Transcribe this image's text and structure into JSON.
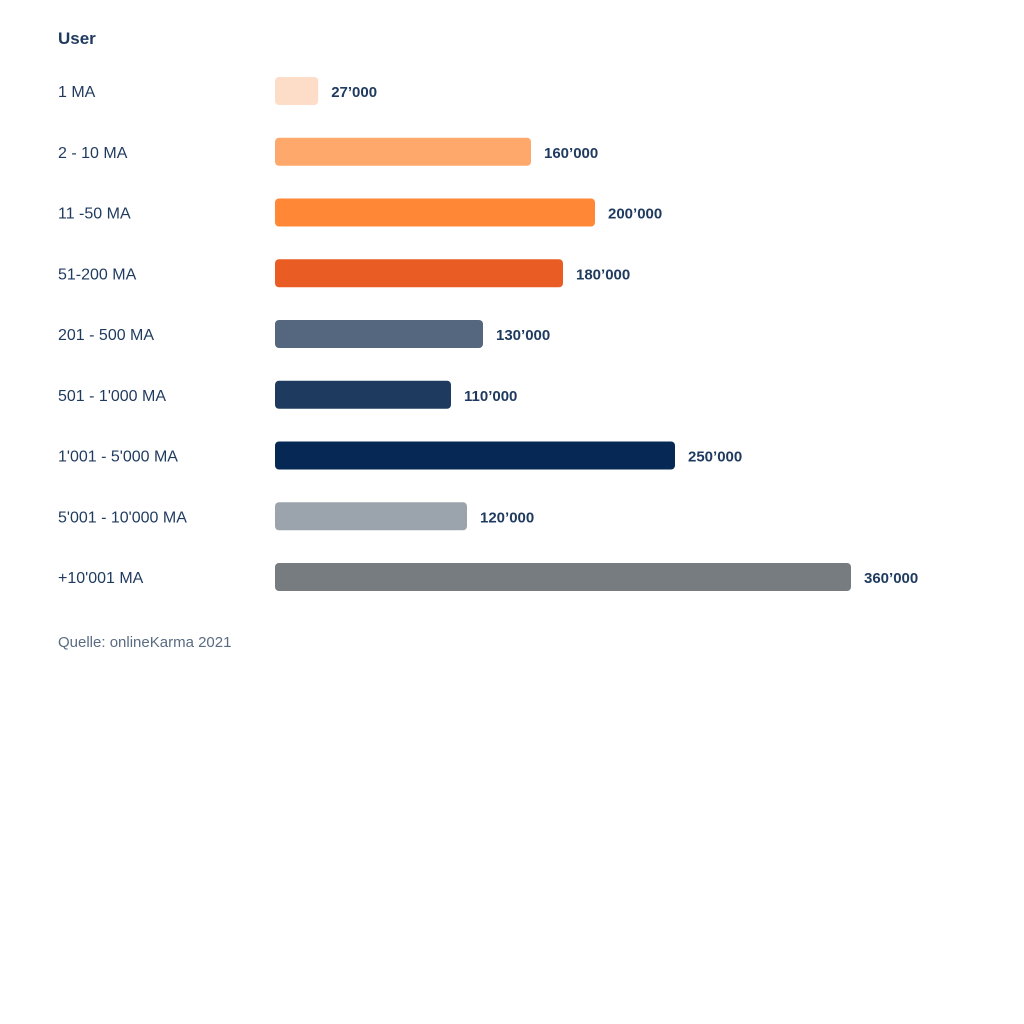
{
  "chart_data": {
    "type": "bar",
    "orientation": "horizontal",
    "title": "User",
    "categories": [
      "1 MA",
      "2 - 10 MA",
      "11 -50 MA",
      "51-200 MA",
      "201 - 500 MA",
      "501 - 1'000 MA",
      "1'001 - 5'000 MA",
      "5'001 - 10'000 MA",
      "+10'001 MA"
    ],
    "values": [
      27000,
      160000,
      200000,
      180000,
      130000,
      110000,
      250000,
      120000,
      360000
    ],
    "value_labels": [
      "27’000",
      "160’000",
      "200’000",
      "180’000",
      "130’000",
      "110’000",
      "250’000",
      "120’000",
      "360’000"
    ],
    "bar_colors": [
      "#fdddc8",
      "#fea96b",
      "#ff8736",
      "#e95c24",
      "#55667f",
      "#1f3a5f",
      "#062854",
      "#9ba3ad",
      "#767c80"
    ],
    "xlim": [
      0,
      360000
    ],
    "grid": false,
    "legend": "none",
    "source": "Quelle: onlineKarma 2021"
  }
}
